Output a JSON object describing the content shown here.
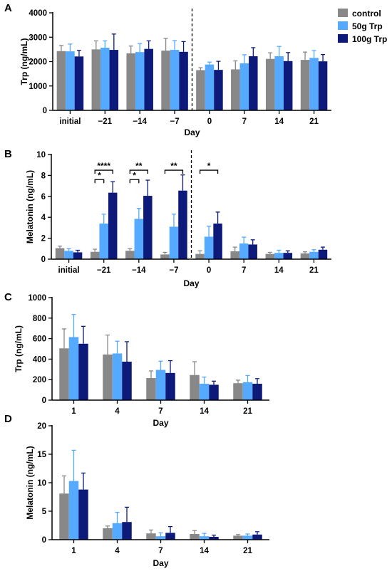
{
  "colors": {
    "control": "#888888",
    "trp50": "#55a9ff",
    "trp100": "#0d1a7a"
  },
  "legend": [
    {
      "name": "control",
      "color": "#888888"
    },
    {
      "name": "50g Trp",
      "color": "#55a9ff"
    },
    {
      "name": "100g Trp",
      "color": "#0d1a7a"
    }
  ],
  "chart_data": [
    {
      "panel": "A",
      "type": "bar",
      "xlabel": "Day",
      "ylabel": "Trp (ng/mL)",
      "ylim": [
        0,
        4000
      ],
      "yticks": [
        0,
        1000,
        2000,
        3000,
        4000
      ],
      "categories": [
        "initial",
        "−21",
        "−14",
        "−7",
        "0",
        "7",
        "14",
        "21"
      ],
      "divider_after": 3,
      "series": [
        {
          "name": "control",
          "values": [
            2430,
            2500,
            2340,
            2450,
            1650,
            1680,
            2110,
            2070
          ],
          "errors": [
            230,
            350,
            300,
            500,
            100,
            350,
            250,
            320
          ]
        },
        {
          "name": "50g Trp",
          "values": [
            2420,
            2570,
            2390,
            2480,
            1880,
            1930,
            2220,
            2150
          ],
          "errors": [
            300,
            280,
            350,
            380,
            100,
            350,
            400,
            300
          ]
        },
        {
          "name": "100g Trp",
          "values": [
            2210,
            2480,
            2520,
            2400,
            1660,
            2220,
            2020,
            2010
          ],
          "errors": [
            250,
            650,
            330,
            420,
            350,
            350,
            350,
            280
          ]
        }
      ],
      "annotations": []
    },
    {
      "panel": "B",
      "type": "bar",
      "xlabel": "Day",
      "ylabel": "Melatonin (ng/mL)",
      "ylim": [
        0,
        10
      ],
      "yticks": [
        0,
        2,
        4,
        6,
        8,
        10
      ],
      "categories": [
        "initial",
        "−21",
        "−14",
        "−7",
        "0",
        "7",
        "14",
        "21"
      ],
      "divider_after": 3,
      "series": [
        {
          "name": "control",
          "values": [
            1.05,
            0.7,
            0.8,
            0.45,
            0.5,
            0.75,
            0.5,
            0.55
          ],
          "errors": [
            0.2,
            0.25,
            0.2,
            0.2,
            0.3,
            0.4,
            0.15,
            0.15
          ]
        },
        {
          "name": "50g Trp",
          "values": [
            0.8,
            3.4,
            3.85,
            3.1,
            2.15,
            1.5,
            0.6,
            0.7
          ],
          "errors": [
            0.2,
            0.9,
            1.0,
            1.2,
            1.0,
            0.6,
            0.25,
            0.2
          ]
        },
        {
          "name": "100g Trp",
          "values": [
            0.65,
            6.35,
            6.05,
            6.55,
            3.4,
            1.4,
            0.6,
            0.9
          ],
          "errors": [
            0.2,
            1.05,
            1.5,
            1.5,
            1.1,
            0.45,
            0.2,
            0.25
          ]
        }
      ],
      "annotations": [
        {
          "category": 1,
          "from_series": 0,
          "to_series": 2,
          "level": 8.5,
          "label": "****"
        },
        {
          "category": 1,
          "from_series": 0,
          "to_series": 1,
          "level": 7.6,
          "label": "*"
        },
        {
          "category": 2,
          "from_series": 0,
          "to_series": 2,
          "level": 8.5,
          "label": "**"
        },
        {
          "category": 2,
          "from_series": 0,
          "to_series": 1,
          "level": 7.6,
          "label": "*"
        },
        {
          "category": 3,
          "from_series": 0,
          "to_series": 2,
          "level": 8.5,
          "label": "**"
        },
        {
          "category": 4,
          "from_series": 0,
          "to_series": 2,
          "level": 8.5,
          "label": "*"
        }
      ]
    },
    {
      "panel": "C",
      "type": "bar",
      "xlabel": "Day",
      "ylabel": "Trp (ng/mL)",
      "ylim": [
        0,
        1000
      ],
      "yticks": [
        0,
        200,
        400,
        600,
        800,
        1000
      ],
      "categories": [
        "1",
        "4",
        "7",
        "14",
        "21"
      ],
      "divider_after": null,
      "series": [
        {
          "name": "control",
          "values": [
            505,
            445,
            215,
            245,
            165
          ],
          "errors": [
            190,
            190,
            70,
            130,
            30
          ]
        },
        {
          "name": "50g Trp",
          "values": [
            615,
            455,
            295,
            160,
            175
          ],
          "errors": [
            220,
            120,
            85,
            65,
            65
          ]
        },
        {
          "name": "100g Trp",
          "values": [
            550,
            375,
            265,
            150,
            160
          ],
          "errors": [
            170,
            195,
            120,
            35,
            50
          ]
        }
      ],
      "annotations": []
    },
    {
      "panel": "D",
      "type": "bar",
      "xlabel": "Day",
      "ylabel": "Melatonin (ng/mL)",
      "ylim": [
        0,
        20
      ],
      "yticks": [
        0,
        5,
        10,
        15,
        20
      ],
      "categories": [
        "1",
        "4",
        "7",
        "14",
        "21"
      ],
      "divider_after": null,
      "series": [
        {
          "name": "control",
          "values": [
            8.1,
            2.0,
            1.1,
            1.0,
            0.7
          ],
          "errors": [
            3.1,
            0.4,
            0.6,
            0.6,
            0.2
          ]
        },
        {
          "name": "50g Trp",
          "values": [
            10.3,
            2.9,
            0.6,
            0.6,
            0.7
          ],
          "errors": [
            5.4,
            1.9,
            0.6,
            0.5,
            0.3
          ]
        },
        {
          "name": "100g Trp",
          "values": [
            8.8,
            3.1,
            1.2,
            0.5,
            0.9
          ],
          "errors": [
            2.9,
            2.6,
            1.1,
            0.3,
            0.5
          ]
        }
      ],
      "annotations": []
    }
  ]
}
